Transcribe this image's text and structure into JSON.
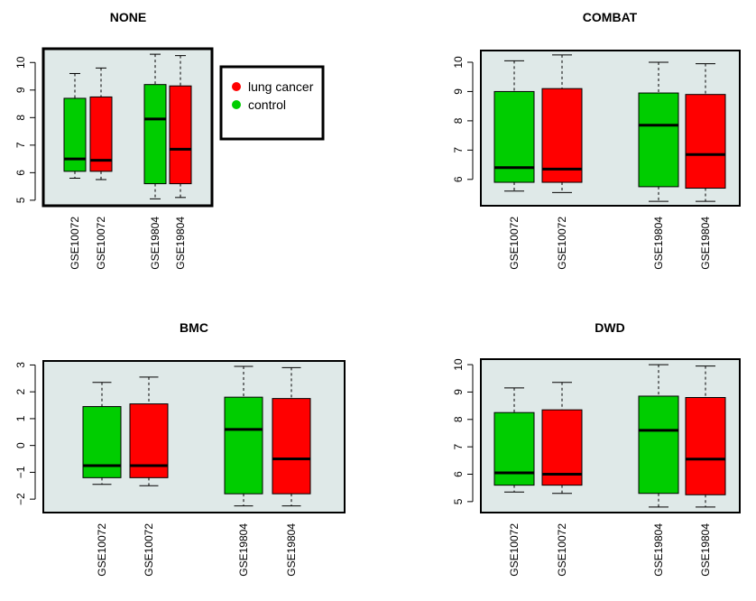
{
  "colors": {
    "panel_bg": "#dfe9e8",
    "control": "#00cd00",
    "lung_cancer": "#ff0000",
    "median": "#000000"
  },
  "legend": {
    "entries": [
      {
        "label": "lung cancer",
        "color": "#ff0000"
      },
      {
        "label": "control",
        "color": "#00cd00"
      }
    ]
  },
  "chart_data": [
    {
      "type": "box",
      "title": "NONE",
      "categories": [
        "GSE10072",
        "GSE10072",
        "GSE19804",
        "GSE19804"
      ],
      "colors": [
        "#00cd00",
        "#ff0000",
        "#00cd00",
        "#ff0000"
      ],
      "groups": [
        1,
        1,
        2,
        2
      ],
      "ylim": [
        4.8,
        10.5
      ],
      "yticks": [
        5,
        6,
        7,
        8,
        9,
        10
      ],
      "yticklabels": [
        "5",
        "6",
        "7",
        "8",
        "9",
        "10"
      ],
      "boxes": [
        {
          "min": 5.8,
          "q1": 6.05,
          "median": 6.5,
          "q3": 8.7,
          "max": 9.6
        },
        {
          "min": 5.75,
          "q1": 6.05,
          "median": 6.45,
          "q3": 8.75,
          "max": 9.8
        },
        {
          "min": 5.05,
          "q1": 5.6,
          "median": 7.95,
          "q3": 9.2,
          "max": 10.3
        },
        {
          "min": 5.1,
          "q1": 5.6,
          "median": 6.85,
          "q3": 9.15,
          "max": 10.25
        }
      ],
      "legend": true
    },
    {
      "type": "box",
      "title": "COMBAT",
      "categories": [
        "GSE10072",
        "GSE10072",
        "GSE19804",
        "GSE19804"
      ],
      "colors": [
        "#00cd00",
        "#ff0000",
        "#00cd00",
        "#ff0000"
      ],
      "groups": [
        1,
        1,
        2,
        2
      ],
      "ylim": [
        5.1,
        10.4
      ],
      "yticks": [
        6,
        7,
        8,
        9,
        10
      ],
      "yticklabels": [
        "6",
        "7",
        "8",
        "9",
        "10"
      ],
      "boxes": [
        {
          "min": 5.6,
          "q1": 5.9,
          "median": 6.4,
          "q3": 9.0,
          "max": 10.05
        },
        {
          "min": 5.55,
          "q1": 5.9,
          "median": 6.35,
          "q3": 9.1,
          "max": 10.25
        },
        {
          "min": 5.25,
          "q1": 5.75,
          "median": 7.85,
          "q3": 8.95,
          "max": 10.0
        },
        {
          "min": 5.25,
          "q1": 5.7,
          "median": 6.85,
          "q3": 8.9,
          "max": 9.95
        }
      ],
      "legend": false
    },
    {
      "type": "box",
      "title": "BMC",
      "categories": [
        "GSE10072",
        "GSE10072",
        "GSE19804",
        "GSE19804"
      ],
      "colors": [
        "#00cd00",
        "#ff0000",
        "#00cd00",
        "#ff0000"
      ],
      "groups": [
        1,
        1,
        2,
        2
      ],
      "ylim": [
        -2.5,
        3.15
      ],
      "yticks": [
        -2,
        -1,
        0,
        1,
        2,
        3
      ],
      "yticklabels": [
        "−2",
        "−1",
        "0",
        "1",
        "2",
        "3"
      ],
      "boxes": [
        {
          "min": -1.45,
          "q1": -1.2,
          "median": -0.75,
          "q3": 1.45,
          "max": 2.35
        },
        {
          "min": -1.5,
          "q1": -1.2,
          "median": -0.75,
          "q3": 1.55,
          "max": 2.55
        },
        {
          "min": -2.25,
          "q1": -1.8,
          "median": 0.6,
          "q3": 1.8,
          "max": 2.95
        },
        {
          "min": -2.25,
          "q1": -1.8,
          "median": -0.5,
          "q3": 1.75,
          "max": 2.9
        }
      ],
      "legend": false
    },
    {
      "type": "box",
      "title": "DWD",
      "categories": [
        "GSE10072",
        "GSE10072",
        "GSE19804",
        "GSE19804"
      ],
      "colors": [
        "#00cd00",
        "#ff0000",
        "#00cd00",
        "#ff0000"
      ],
      "groups": [
        1,
        1,
        2,
        2
      ],
      "ylim": [
        4.6,
        10.2
      ],
      "yticks": [
        5,
        6,
        7,
        8,
        9,
        10
      ],
      "yticklabels": [
        "5",
        "6",
        "7",
        "8",
        "9",
        "10"
      ],
      "boxes": [
        {
          "min": 5.35,
          "q1": 5.6,
          "median": 6.05,
          "q3": 8.25,
          "max": 9.15
        },
        {
          "min": 5.3,
          "q1": 5.6,
          "median": 6.0,
          "q3": 8.35,
          "max": 9.35
        },
        {
          "min": 4.8,
          "q1": 5.3,
          "median": 7.6,
          "q3": 8.85,
          "max": 10.0
        },
        {
          "min": 4.8,
          "q1": 5.25,
          "median": 6.55,
          "q3": 8.8,
          "max": 9.95
        }
      ],
      "legend": false
    }
  ]
}
